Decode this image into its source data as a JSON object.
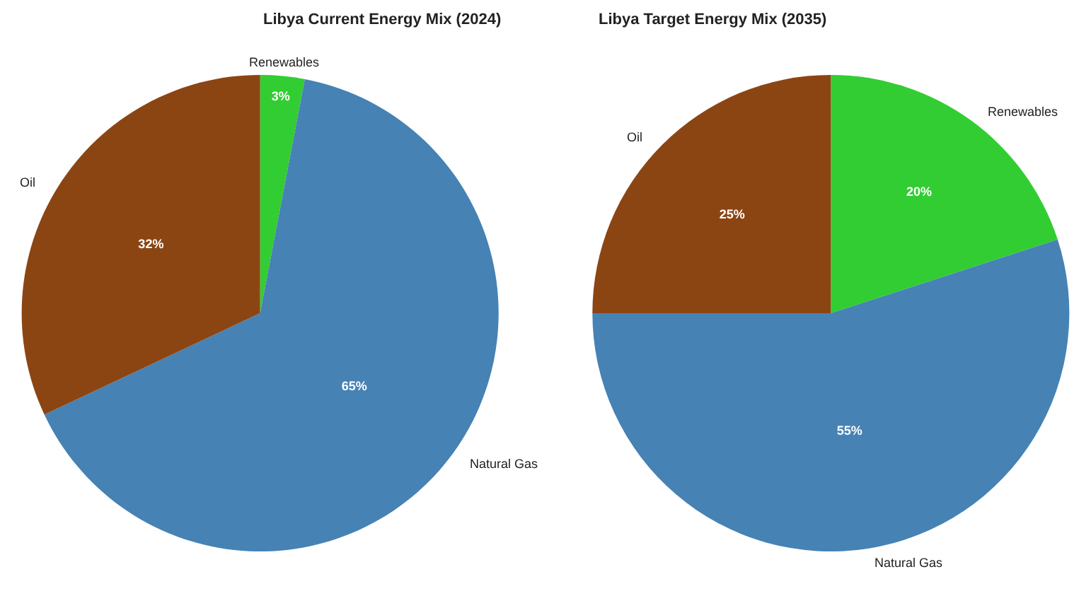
{
  "chart_data": [
    {
      "type": "pie",
      "title": "Libya Current Energy Mix (2024)",
      "categories": [
        "Renewables",
        "Natural Gas",
        "Oil"
      ],
      "values": [
        3,
        65,
        32
      ],
      "colors": [
        "#32cd32",
        "#4682b4",
        "#8b4513"
      ],
      "value_labels": [
        "3%",
        "65%",
        "32%"
      ]
    },
    {
      "type": "pie",
      "title": "Libya Target Energy Mix (2035)",
      "categories": [
        "Renewables",
        "Natural Gas",
        "Oil"
      ],
      "values": [
        20,
        55,
        25
      ],
      "colors": [
        "#32cd32",
        "#4682b4",
        "#8b4513"
      ],
      "value_labels": [
        "20%",
        "55%",
        "25%"
      ]
    }
  ]
}
